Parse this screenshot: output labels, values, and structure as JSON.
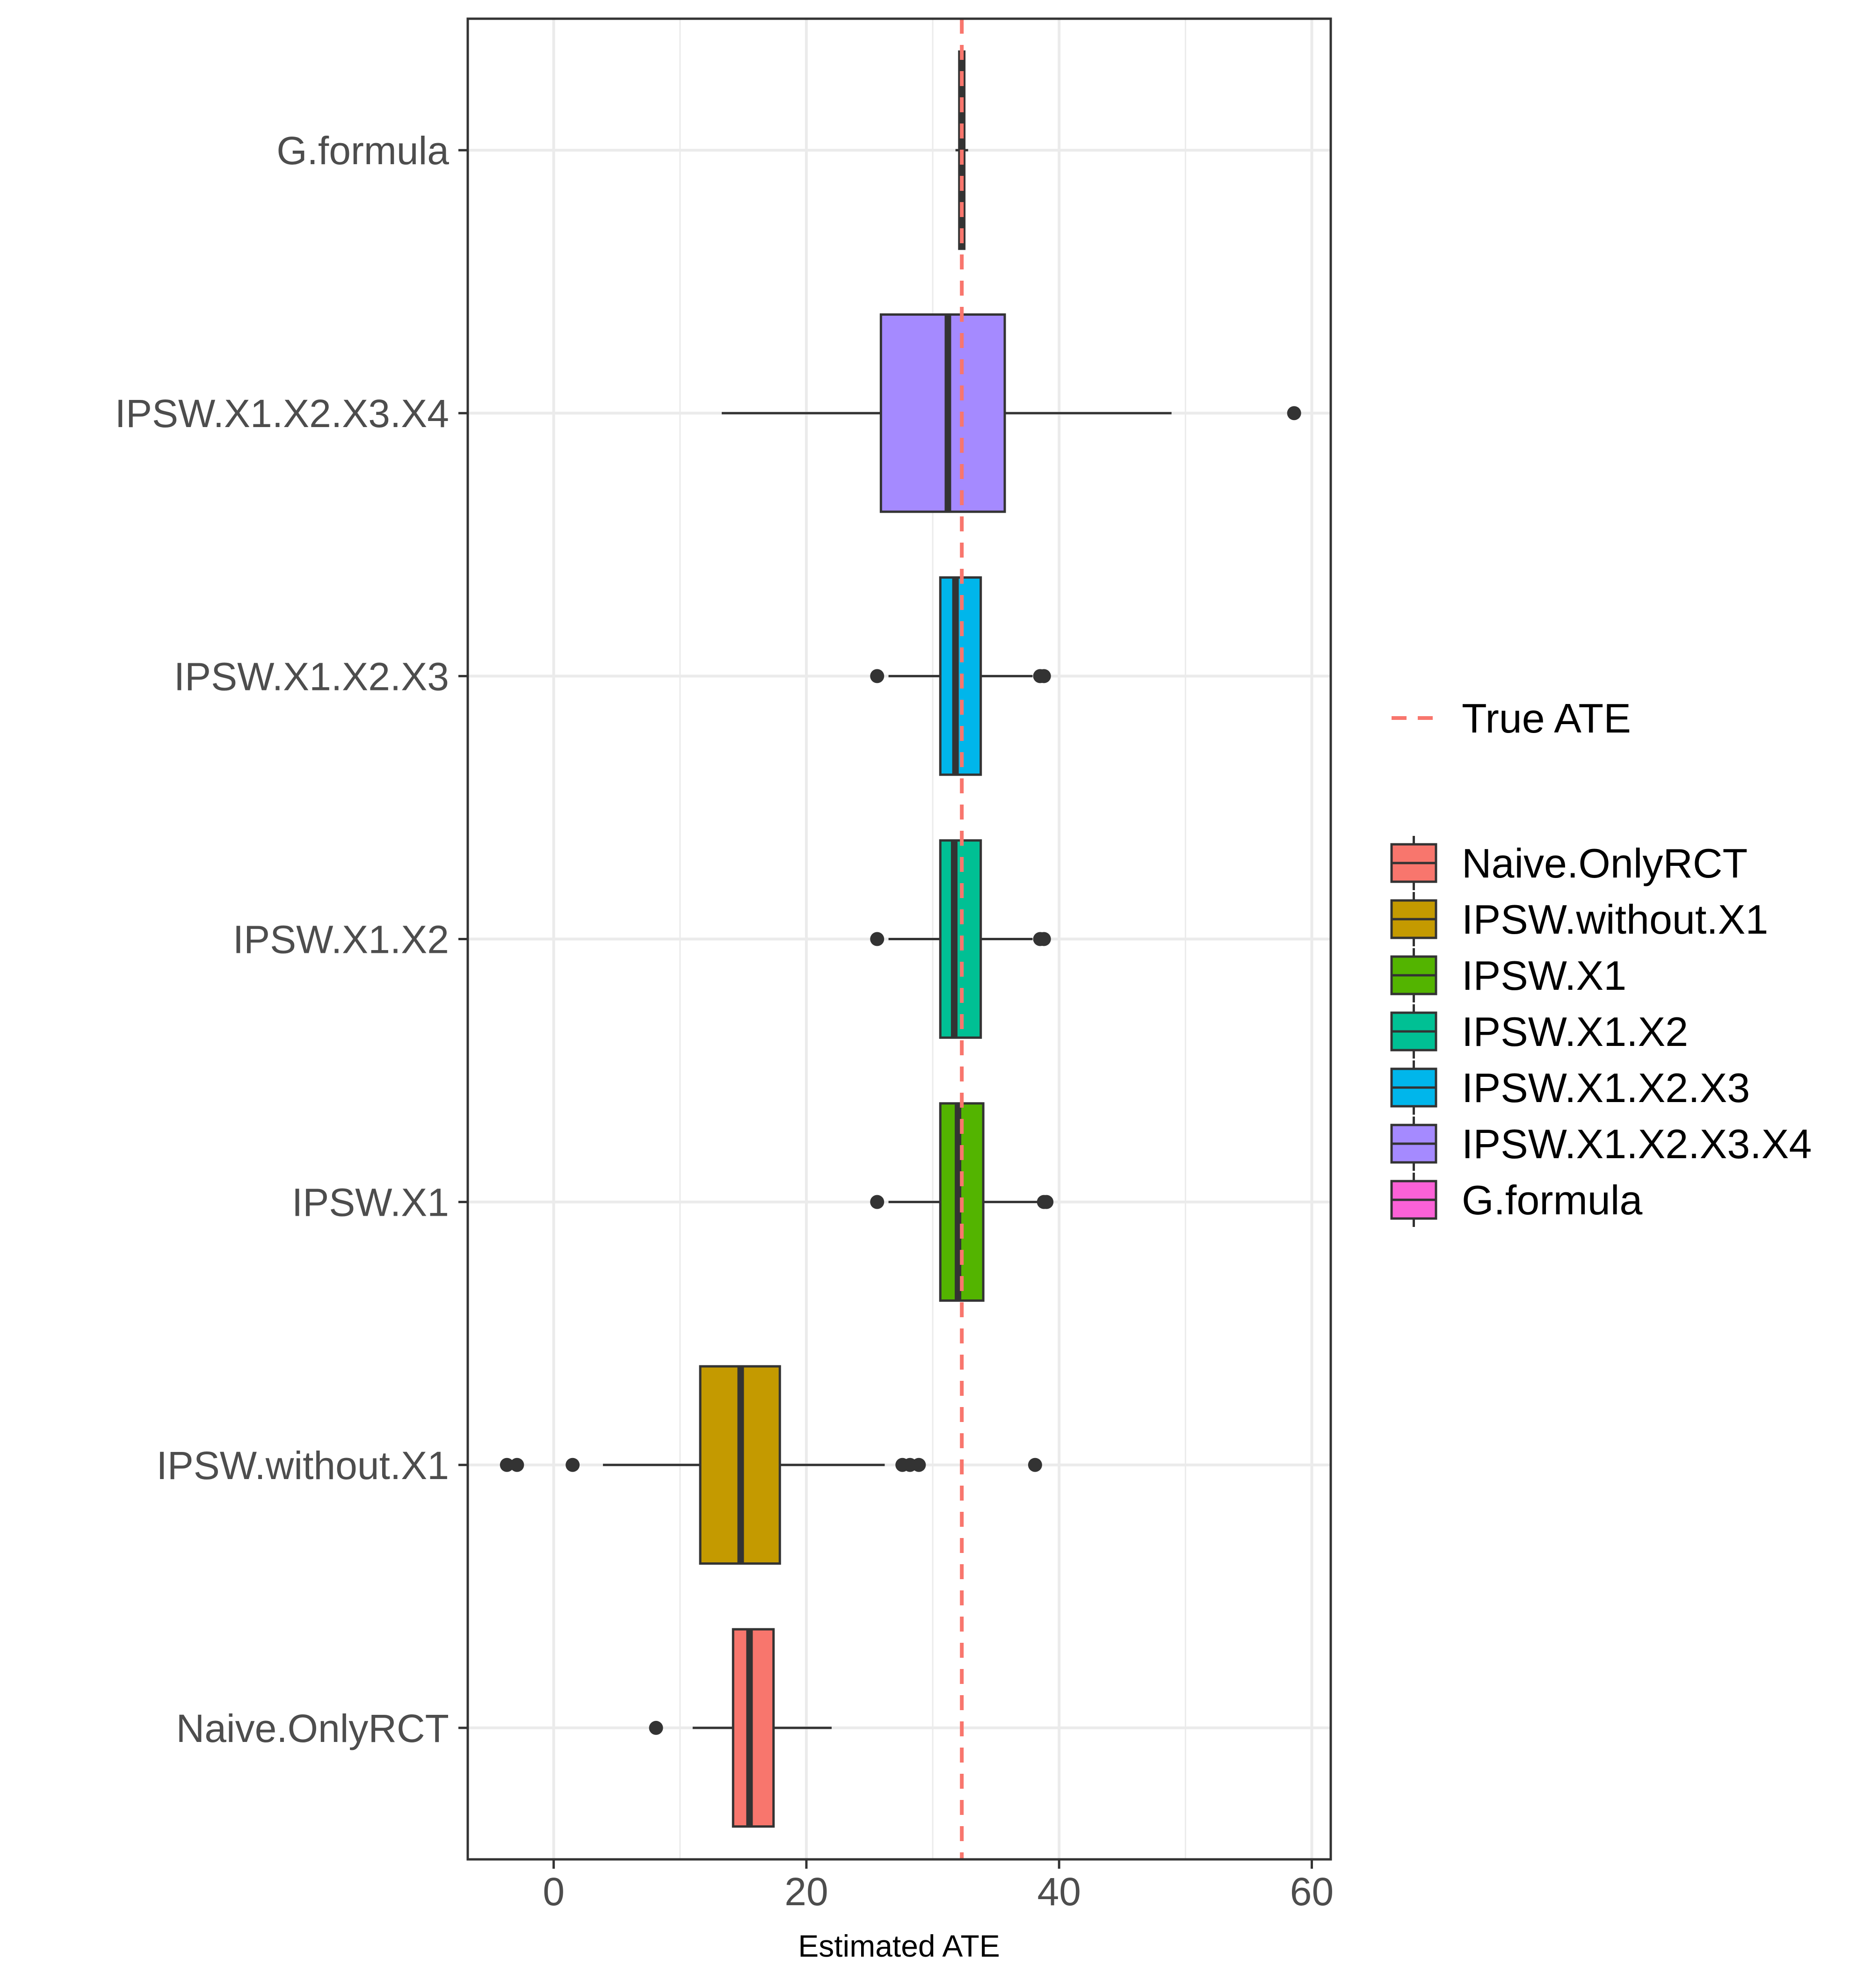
{
  "chart_data": {
    "type": "boxplot",
    "orientation": "horizontal",
    "xlabel": "Estimated ATE",
    "ylabel": "",
    "xlim": [
      -6.8,
      61.5
    ],
    "x_ticks": [
      0,
      20,
      40,
      60
    ],
    "grid": true,
    "reference_line": {
      "label": "True ATE",
      "value": 32.3,
      "color": "#F8766D",
      "style": "dashed"
    },
    "legend_position": "right",
    "categories": [
      "G.formula",
      "IPSW.X1.X2.X3.X4",
      "IPSW.X1.X2.X3",
      "IPSW.X1.X2",
      "IPSW.X1",
      "IPSW.without.X1",
      "Naive.OnlyRCT"
    ],
    "legend_entries": [
      "Naive.OnlyRCT",
      "IPSW.without.X1",
      "IPSW.X1",
      "IPSW.X1.X2",
      "IPSW.X1.X2.X3",
      "IPSW.X1.X2.X3.X4",
      "G.formula"
    ],
    "series": [
      {
        "name": "Naive.OnlyRCT",
        "color": "#F8766D",
        "whisker_low": 11.0,
        "q1": 14.2,
        "median": 15.5,
        "q3": 17.4,
        "whisker_high": 22.0,
        "outliers": [
          8.1
        ]
      },
      {
        "name": "IPSW.without.X1",
        "color": "#C49A00",
        "whisker_low": 3.9,
        "q1": 11.6,
        "median": 14.8,
        "q3": 17.9,
        "whisker_high": 26.2,
        "outliers": [
          -3.7,
          -2.9,
          1.5,
          27.6,
          28.2,
          28.9,
          38.1
        ]
      },
      {
        "name": "IPSW.X1",
        "color": "#53B400",
        "whisker_low": 26.5,
        "q1": 30.6,
        "median": 32.0,
        "q3": 34.0,
        "whisker_high": 38.4,
        "outliers": [
          25.6,
          38.8,
          39.0
        ]
      },
      {
        "name": "IPSW.X1.X2",
        "color": "#00C094",
        "whisker_low": 26.5,
        "q1": 30.6,
        "median": 31.7,
        "q3": 33.8,
        "whisker_high": 37.9,
        "outliers": [
          25.6,
          38.5,
          38.8
        ]
      },
      {
        "name": "IPSW.X1.X2.X3",
        "color": "#00B6EB",
        "whisker_low": 26.5,
        "q1": 30.6,
        "median": 31.8,
        "q3": 33.8,
        "whisker_high": 37.9,
        "outliers": [
          25.6,
          38.5,
          38.8
        ]
      },
      {
        "name": "IPSW.X1.X2.X3.X4",
        "color": "#A58AFF",
        "whisker_low": 13.3,
        "q1": 25.9,
        "median": 31.2,
        "q3": 35.7,
        "whisker_high": 48.9,
        "outliers": [
          58.6
        ]
      },
      {
        "name": "G.formula",
        "color": "#FB61D7",
        "whisker_low": 31.8,
        "q1": 32.1,
        "median": 32.3,
        "q3": 32.5,
        "whisker_high": 32.8,
        "outliers": []
      }
    ]
  }
}
